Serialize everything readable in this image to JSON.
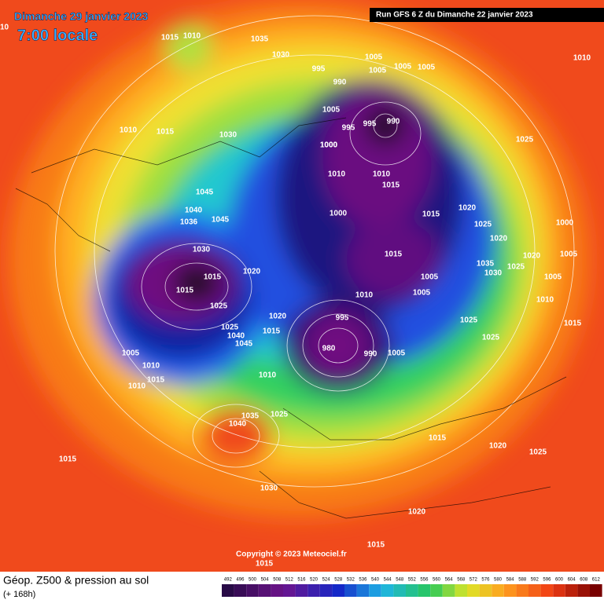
{
  "header": {
    "date": "Dimanche 29 janvier 2023",
    "time": "7:00 locale",
    "run": "Run GFS 6 Z du Dimanche 22 janvier 2023"
  },
  "copyright": "Copyright © 2023 Meteociel.fr",
  "legend": {
    "title": "Géop. Z500 & pression au sol",
    "lead": "(+ 168h)",
    "scale": [
      492,
      496,
      500,
      504,
      508,
      512,
      516,
      520,
      524,
      528,
      532,
      536,
      540,
      544,
      548,
      552,
      556,
      560,
      564,
      568,
      572,
      576,
      580,
      584,
      588,
      592,
      596,
      600,
      604,
      608,
      612
    ]
  },
  "isobars": [
    1010,
    1015,
    1010,
    1035,
    1030,
    1005,
    1005,
    1005,
    995,
    990,
    1005,
    995,
    990,
    995,
    1000,
    1005,
    1010,
    1010,
    1015,
    1010,
    1015,
    1030,
    1045,
    1040,
    1036,
    1045,
    1030,
    1015,
    1015,
    1025,
    1020,
    1025,
    1045,
    1040,
    1015,
    1020,
    1005,
    1010,
    1010,
    1015,
    1010,
    1040,
    1035,
    1025,
    1015,
    1030,
    1015,
    1015,
    1020,
    1015,
    1020,
    1025,
    1005,
    1005,
    1010,
    1025,
    1035,
    1030,
    1025,
    1020,
    1000,
    1005,
    1010,
    980,
    990,
    1005,
    995,
    1000,
    1000,
    1020,
    1015,
    1015,
    1010,
    1025,
    1025,
    1020,
    1025,
    1005,
    1015
  ]
}
